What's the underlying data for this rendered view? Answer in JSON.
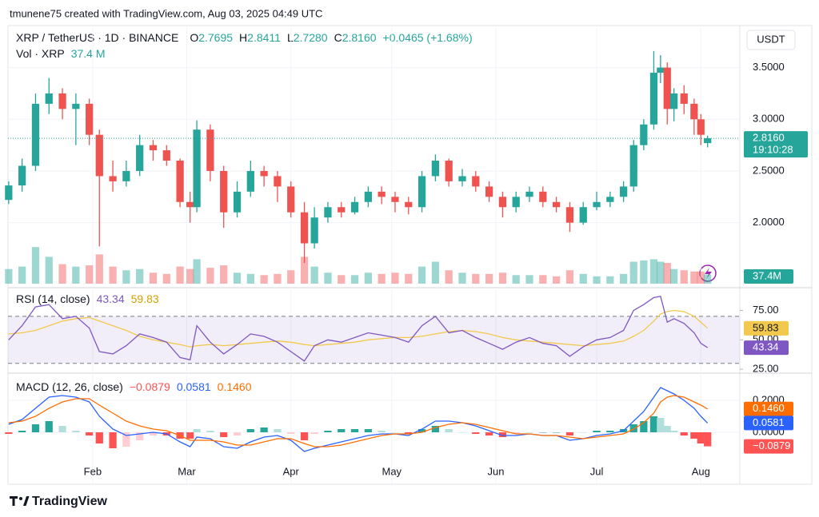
{
  "header": {
    "byline": "tmunene75 created with TradingView.com, Aug 03, 2025 04:49 UTC",
    "logo": "TradingView"
  },
  "chart_data": {
    "type": "candlestick",
    "title": "XRP / TetherUS · 1D · BINANCE",
    "currency": "USDT",
    "x": [
      7,
      11,
      15,
      19,
      23,
      27,
      31,
      34,
      38,
      42,
      46,
      50,
      54,
      58,
      61,
      63,
      67,
      71,
      75,
      79,
      83,
      87,
      91,
      95,
      98,
      102,
      106,
      110,
      114,
      118,
      122,
      126,
      130,
      134,
      138,
      142,
      146,
      150,
      154,
      158,
      162,
      166,
      170,
      174,
      178,
      182,
      186,
      190,
      193,
      196,
      199,
      201,
      203,
      205,
      208,
      211,
      213,
      215
    ],
    "xlim": [
      6.8,
      224.6
    ],
    "xticks": [
      {
        "value": 32,
        "label": "Feb"
      },
      {
        "value": 60,
        "label": "Mar"
      },
      {
        "value": 91,
        "label": "Apr"
      },
      {
        "value": 121,
        "label": "May"
      },
      {
        "value": 152,
        "label": "Jun"
      },
      {
        "value": 182,
        "label": "Jul"
      },
      {
        "value": 213,
        "label": "Aug"
      }
    ],
    "open": [
      2.22,
      2.36,
      2.55,
      3.15,
      3.25,
      3.1,
      3.15,
      2.85,
      2.45,
      2.4,
      2.5,
      2.75,
      2.7,
      2.6,
      2.2,
      2.15,
      2.9,
      2.5,
      2.1,
      2.3,
      2.5,
      2.45,
      2.35,
      2.1,
      1.8,
      2.05,
      2.15,
      2.1,
      2.2,
      2.3,
      2.25,
      2.2,
      2.15,
      2.45,
      2.6,
      2.4,
      2.45,
      2.35,
      2.25,
      2.15,
      2.25,
      2.3,
      2.2,
      2.15,
      2.0,
      2.15,
      2.2,
      2.25,
      2.35,
      2.75,
      2.95,
      3.45,
      3.5,
      3.1,
      3.25,
      3.15,
      3.0,
      2.7695
    ],
    "high": [
      2.4,
      2.62,
      3.25,
      3.4,
      3.3,
      3.25,
      3.2,
      2.9,
      2.6,
      2.6,
      2.85,
      2.8,
      2.75,
      2.62,
      2.3,
      2.99,
      2.95,
      2.55,
      2.4,
      2.6,
      2.55,
      2.5,
      2.4,
      2.2,
      2.15,
      2.2,
      2.2,
      2.25,
      2.35,
      2.35,
      2.3,
      2.25,
      2.5,
      2.66,
      2.62,
      2.52,
      2.5,
      2.4,
      2.3,
      2.3,
      2.35,
      2.35,
      2.25,
      2.2,
      2.2,
      2.3,
      2.3,
      2.4,
      2.8,
      3.0,
      3.66,
      3.62,
      3.55,
      3.3,
      3.33,
      3.2,
      3.05,
      2.8411
    ],
    "low": [
      2.18,
      2.3,
      2.5,
      3.05,
      3.0,
      2.75,
      2.75,
      1.77,
      2.3,
      2.35,
      2.45,
      2.6,
      2.55,
      2.15,
      2.0,
      2.1,
      2.4,
      1.95,
      2.05,
      2.25,
      2.35,
      2.2,
      2.05,
      1.61,
      1.75,
      2.0,
      2.05,
      2.08,
      2.15,
      2.18,
      2.1,
      2.08,
      2.1,
      2.4,
      2.35,
      2.35,
      2.3,
      2.2,
      2.05,
      2.1,
      2.2,
      2.15,
      2.1,
      1.91,
      1.98,
      2.12,
      2.15,
      2.2,
      2.3,
      2.7,
      2.9,
      3.35,
      2.95,
      2.98,
      3.05,
      2.85,
      2.75,
      2.728
    ],
    "close": [
      2.36,
      2.55,
      3.15,
      3.25,
      3.1,
      3.15,
      2.85,
      2.45,
      2.4,
      2.5,
      2.75,
      2.7,
      2.6,
      2.2,
      2.15,
      2.9,
      2.5,
      2.1,
      2.3,
      2.5,
      2.45,
      2.35,
      2.1,
      1.8,
      2.05,
      2.15,
      2.1,
      2.2,
      2.3,
      2.25,
      2.2,
      2.15,
      2.45,
      2.6,
      2.4,
      2.45,
      2.35,
      2.25,
      2.15,
      2.25,
      2.3,
      2.2,
      2.15,
      2.0,
      2.15,
      2.2,
      2.25,
      2.35,
      2.75,
      2.95,
      3.45,
      3.5,
      3.1,
      3.25,
      3.15,
      3.0,
      2.85,
      2.816
    ],
    "ohlc_letters": [
      "O",
      "H",
      "L",
      "C"
    ],
    "ohlc_labels": {
      "open": "2.7695",
      "high": "2.8411",
      "low": "2.7280",
      "close": "2.8160"
    },
    "change": "+0.0465 (+1.68%)",
    "countdown": "19:10:28",
    "ylim": [
      1.41,
      3.69
    ],
    "yticks": [
      {
        "value": 2,
        "label": "2.0000"
      },
      {
        "value": 2.5,
        "label": "2.5000"
      },
      {
        "value": 3,
        "label": "3.0000"
      },
      {
        "value": 3.5,
        "label": "3.5000"
      }
    ],
    "up_color": "#26a69a",
    "down_color": "#ef5350",
    "volume": {
      "title": "Vol · XRP",
      "values": [
        60,
        70,
        150,
        110,
        80,
        70,
        75,
        120,
        70,
        55,
        60,
        45,
        40,
        70,
        60,
        100,
        65,
        75,
        45,
        40,
        35,
        40,
        55,
        110,
        70,
        45,
        35,
        35,
        45,
        40,
        45,
        40,
        70,
        90,
        55,
        45,
        40,
        40,
        45,
        35,
        35,
        35,
        30,
        55,
        40,
        30,
        30,
        40,
        90,
        95,
        100,
        90,
        85,
        60,
        55,
        50,
        50,
        37.4
      ],
      "ylim": [
        0,
        180
      ],
      "last_label": "37.4 M",
      "tag_label": "37.4M"
    },
    "rsi": {
      "title": "RSI (14, close)",
      "color": "#7e57c2",
      "ma_color": "#f2c94c",
      "values": [
        50,
        62,
        78,
        80,
        68,
        70,
        60,
        40,
        38,
        45,
        55,
        52,
        48,
        35,
        33,
        62,
        48,
        38,
        46,
        55,
        53,
        48,
        40,
        32,
        45,
        50,
        48,
        52,
        56,
        54,
        52,
        48,
        62,
        70,
        56,
        58,
        52,
        47,
        42,
        48,
        52,
        47,
        45,
        36,
        44,
        50,
        52,
        58,
        75,
        80,
        86,
        87,
        65,
        68,
        64,
        56,
        47,
        43.34
      ],
      "ma": [
        55,
        56,
        58,
        62,
        66,
        68,
        69,
        66,
        62,
        58,
        53,
        50,
        48,
        46,
        44,
        45,
        46,
        45,
        46,
        47,
        48,
        49,
        48,
        46,
        45,
        46,
        47,
        48,
        50,
        51,
        52,
        52,
        53,
        55,
        57,
        58,
        57,
        55,
        52,
        50,
        49,
        48,
        47,
        46,
        45,
        46,
        47,
        49,
        53,
        58,
        66,
        72,
        74,
        75,
        74,
        70,
        65,
        59.83
      ],
      "ylim": [
        23,
        91
      ],
      "yticks": [
        {
          "value": 25,
          "label": "25.00"
        },
        {
          "value": 50,
          "label": "50.00"
        },
        {
          "value": 75,
          "label": "75.00"
        }
      ],
      "bands": [
        30,
        70
      ]
    },
    "macd": {
      "title": "MACD (12, 26, close)",
      "macd_color": "#2962ff",
      "signal_color": "#ff6d00",
      "macd": [
        0.05,
        0.08,
        0.15,
        0.22,
        0.23,
        0.22,
        0.19,
        0.1,
        0.02,
        -0.02,
        -0.01,
        0.0,
        -0.01,
        -0.06,
        -0.09,
        -0.03,
        -0.04,
        -0.09,
        -0.1,
        -0.06,
        -0.03,
        -0.02,
        -0.05,
        -0.12,
        -0.1,
        -0.08,
        -0.06,
        -0.04,
        -0.02,
        -0.01,
        -0.01,
        -0.02,
        0.02,
        0.07,
        0.07,
        0.06,
        0.04,
        0.01,
        -0.02,
        -0.02,
        -0.01,
        -0.02,
        -0.02,
        -0.05,
        -0.04,
        -0.02,
        -0.01,
        0.01,
        0.07,
        0.13,
        0.22,
        0.28,
        0.26,
        0.24,
        0.2,
        0.15,
        0.1,
        0.0581
      ],
      "signal": [
        0.06,
        0.07,
        0.1,
        0.15,
        0.19,
        0.21,
        0.21,
        0.17,
        0.12,
        0.07,
        0.04,
        0.02,
        0.01,
        -0.02,
        -0.05,
        -0.05,
        -0.05,
        -0.06,
        -0.08,
        -0.08,
        -0.06,
        -0.04,
        -0.04,
        -0.07,
        -0.09,
        -0.09,
        -0.08,
        -0.06,
        -0.04,
        -0.02,
        -0.01,
        -0.01,
        0.0,
        0.03,
        0.05,
        0.06,
        0.05,
        0.03,
        0.01,
        -0.01,
        -0.01,
        -0.02,
        -0.02,
        -0.03,
        -0.04,
        -0.03,
        -0.02,
        -0.01,
        0.02,
        0.06,
        0.12,
        0.19,
        0.22,
        0.23,
        0.22,
        0.19,
        0.17,
        0.146
      ],
      "histogram": [
        -0.01,
        0.01,
        0.05,
        0.07,
        0.04,
        0.01,
        -0.02,
        -0.07,
        -0.1,
        -0.09,
        -0.05,
        -0.02,
        -0.02,
        -0.04,
        -0.04,
        0.02,
        0.01,
        -0.03,
        -0.02,
        0.02,
        0.03,
        0.02,
        -0.01,
        -0.05,
        -0.01,
        0.01,
        0.02,
        0.02,
        0.02,
        0.01,
        0.0,
        -0.01,
        0.02,
        0.04,
        0.02,
        0.0,
        -0.01,
        -0.02,
        -0.03,
        -0.01,
        0.0,
        0.0,
        0.0,
        -0.02,
        0.0,
        0.01,
        0.01,
        0.02,
        0.05,
        0.07,
        0.1,
        0.09,
        0.04,
        0.01,
        -0.02,
        -0.04,
        -0.07,
        -0.0879
      ],
      "value_labels": {
        "histogram": "−0.0879",
        "macd": "0.0581",
        "signal": "0.1460"
      },
      "ylim": [
        -0.32,
        0.355
      ],
      "yticks": [
        {
          "value": 0,
          "label": "0.0000"
        },
        {
          "value": 0.2,
          "label": "0.2000"
        }
      ]
    }
  }
}
